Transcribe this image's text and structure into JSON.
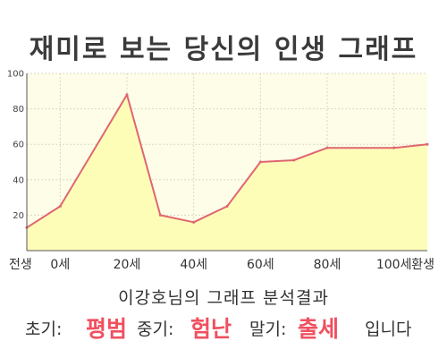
{
  "title": "재미로 보는 당신의 인생 그래프",
  "summary": "이강호님의 그래프 분석결과",
  "result": {
    "early_label": "초기:",
    "early_value": "평범",
    "mid_label": "중기:",
    "mid_value": "험난",
    "late_label": "말기:",
    "late_value": "출세",
    "ending": "입니다"
  },
  "colors": {
    "plot_bg": "#fefee8",
    "area_fill": "#fdfdb8",
    "line": "#e06670",
    "highlight": "#f05060",
    "grid": "#d8d8c8"
  },
  "chart_data": {
    "type": "area",
    "title": "",
    "xlabel": "",
    "ylabel": "",
    "ylim": [
      0,
      100
    ],
    "yticks": [
      20,
      40,
      60,
      80,
      100
    ],
    "xticks": [
      {
        "x": -10,
        "label": "전생"
      },
      {
        "x": 0,
        "label": "0세"
      },
      {
        "x": 20,
        "label": "20세"
      },
      {
        "x": 40,
        "label": "40세"
      },
      {
        "x": 60,
        "label": "60세"
      },
      {
        "x": 80,
        "label": "80세"
      },
      {
        "x": 100,
        "label": "100세"
      },
      {
        "x": 110,
        "label": "환생"
      }
    ],
    "xlim": [
      -10,
      110
    ],
    "grid": true,
    "legend": "none",
    "series": [
      {
        "points": [
          {
            "x": -10,
            "y": 13
          },
          {
            "x": 0,
            "y": 25
          },
          {
            "x": 20,
            "y": 88
          },
          {
            "x": 30,
            "y": 20
          },
          {
            "x": 40,
            "y": 16
          },
          {
            "x": 50,
            "y": 25
          },
          {
            "x": 60,
            "y": 50
          },
          {
            "x": 70,
            "y": 51
          },
          {
            "x": 80,
            "y": 58
          },
          {
            "x": 100,
            "y": 58
          },
          {
            "x": 110,
            "y": 60
          }
        ]
      }
    ]
  }
}
